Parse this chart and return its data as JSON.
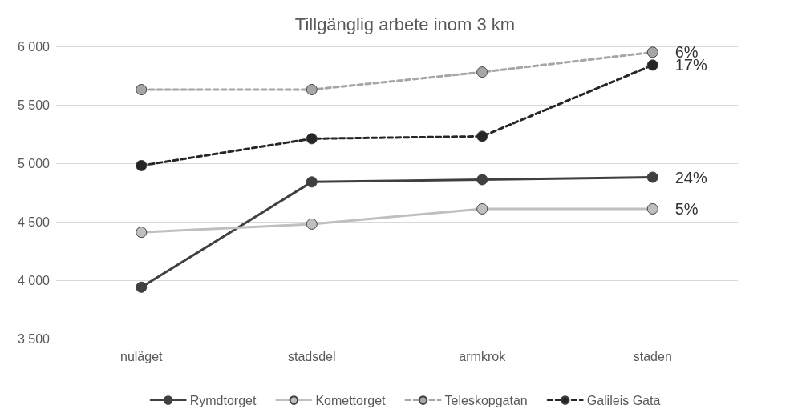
{
  "chart_data": {
    "type": "line",
    "title": "Tillgänglig arbete inom 3 km",
    "categories": [
      "nuläget",
      "stadsdel",
      "armkrok",
      "staden"
    ],
    "series": [
      {
        "name": "Rymdtorget",
        "color": "#404040",
        "line_style": "solid",
        "values": [
          3940,
          4840,
          4860,
          4880
        ]
      },
      {
        "name": "Komettorget",
        "color": "#bfbfbf",
        "line_style": "solid",
        "values": [
          4410,
          4480,
          4610,
          4610
        ]
      },
      {
        "name": "Teleskopgatan",
        "color": "#a6a6a6",
        "line_style": "dashed",
        "values": [
          5630,
          5630,
          5780,
          5950
        ]
      },
      {
        "name": "Galileis Gata",
        "color": "#262626",
        "line_style": "dashed",
        "values": [
          4980,
          5210,
          5230,
          5840
        ]
      }
    ],
    "annotations": [
      {
        "text": "6%",
        "x": "staden",
        "y": 5950
      },
      {
        "text": "17%",
        "x": "staden",
        "y": 5840
      },
      {
        "text": "24%",
        "x": "staden",
        "y": 4880
      },
      {
        "text": "5%",
        "x": "staden",
        "y": 4610
      }
    ],
    "ylim": [
      3500,
      6000
    ],
    "yticks": [
      {
        "value": 3500,
        "label": "3 500"
      },
      {
        "value": 4000,
        "label": "4 000"
      },
      {
        "value": 4500,
        "label": "4 500"
      },
      {
        "value": 5000,
        "label": "5 000"
      },
      {
        "value": 5500,
        "label": "5 500"
      },
      {
        "value": 6000,
        "label": "6 000"
      }
    ],
    "grid": "y",
    "legend": "bottom",
    "marker": "circle"
  }
}
